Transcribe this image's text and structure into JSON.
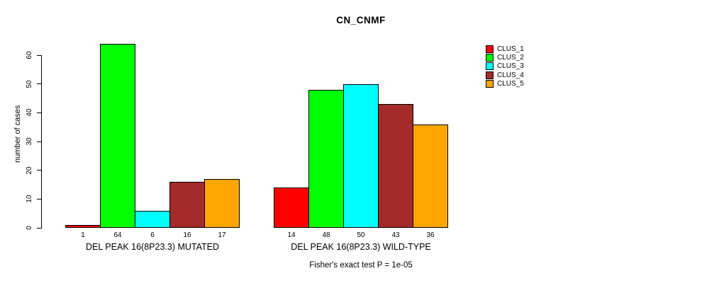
{
  "chart_data": {
    "type": "bar",
    "title": "CN_CNMF",
    "ylabel": "number of cases",
    "xlabel": "",
    "ylim": [
      0,
      60
    ],
    "yticks": [
      0,
      10,
      20,
      30,
      40,
      50,
      60
    ],
    "grid": false,
    "legend_position": "right",
    "bar_value_labels": true,
    "categories": [
      "DEL PEAK 16(8P23.3) MUTATED",
      "DEL PEAK 16(8P23.3) WILD-TYPE"
    ],
    "series": [
      {
        "name": "CLUS_1",
        "color": "#FF0000",
        "values": [
          1,
          14
        ]
      },
      {
        "name": "CLUS_2",
        "color": "#00FF00",
        "values": [
          64,
          48
        ]
      },
      {
        "name": "CLUS_3",
        "color": "#00FFFF",
        "values": [
          6,
          50
        ]
      },
      {
        "name": "CLUS_4",
        "color": "#A52A2A",
        "values": [
          16,
          43
        ]
      },
      {
        "name": "CLUS_5",
        "color": "#FFA500",
        "values": [
          17,
          36
        ]
      }
    ],
    "annotation": "Fisher's exact test P = 1e-05"
  },
  "colors": {
    "axis": "#000000",
    "text": "#000000",
    "background": "#ffffff"
  }
}
